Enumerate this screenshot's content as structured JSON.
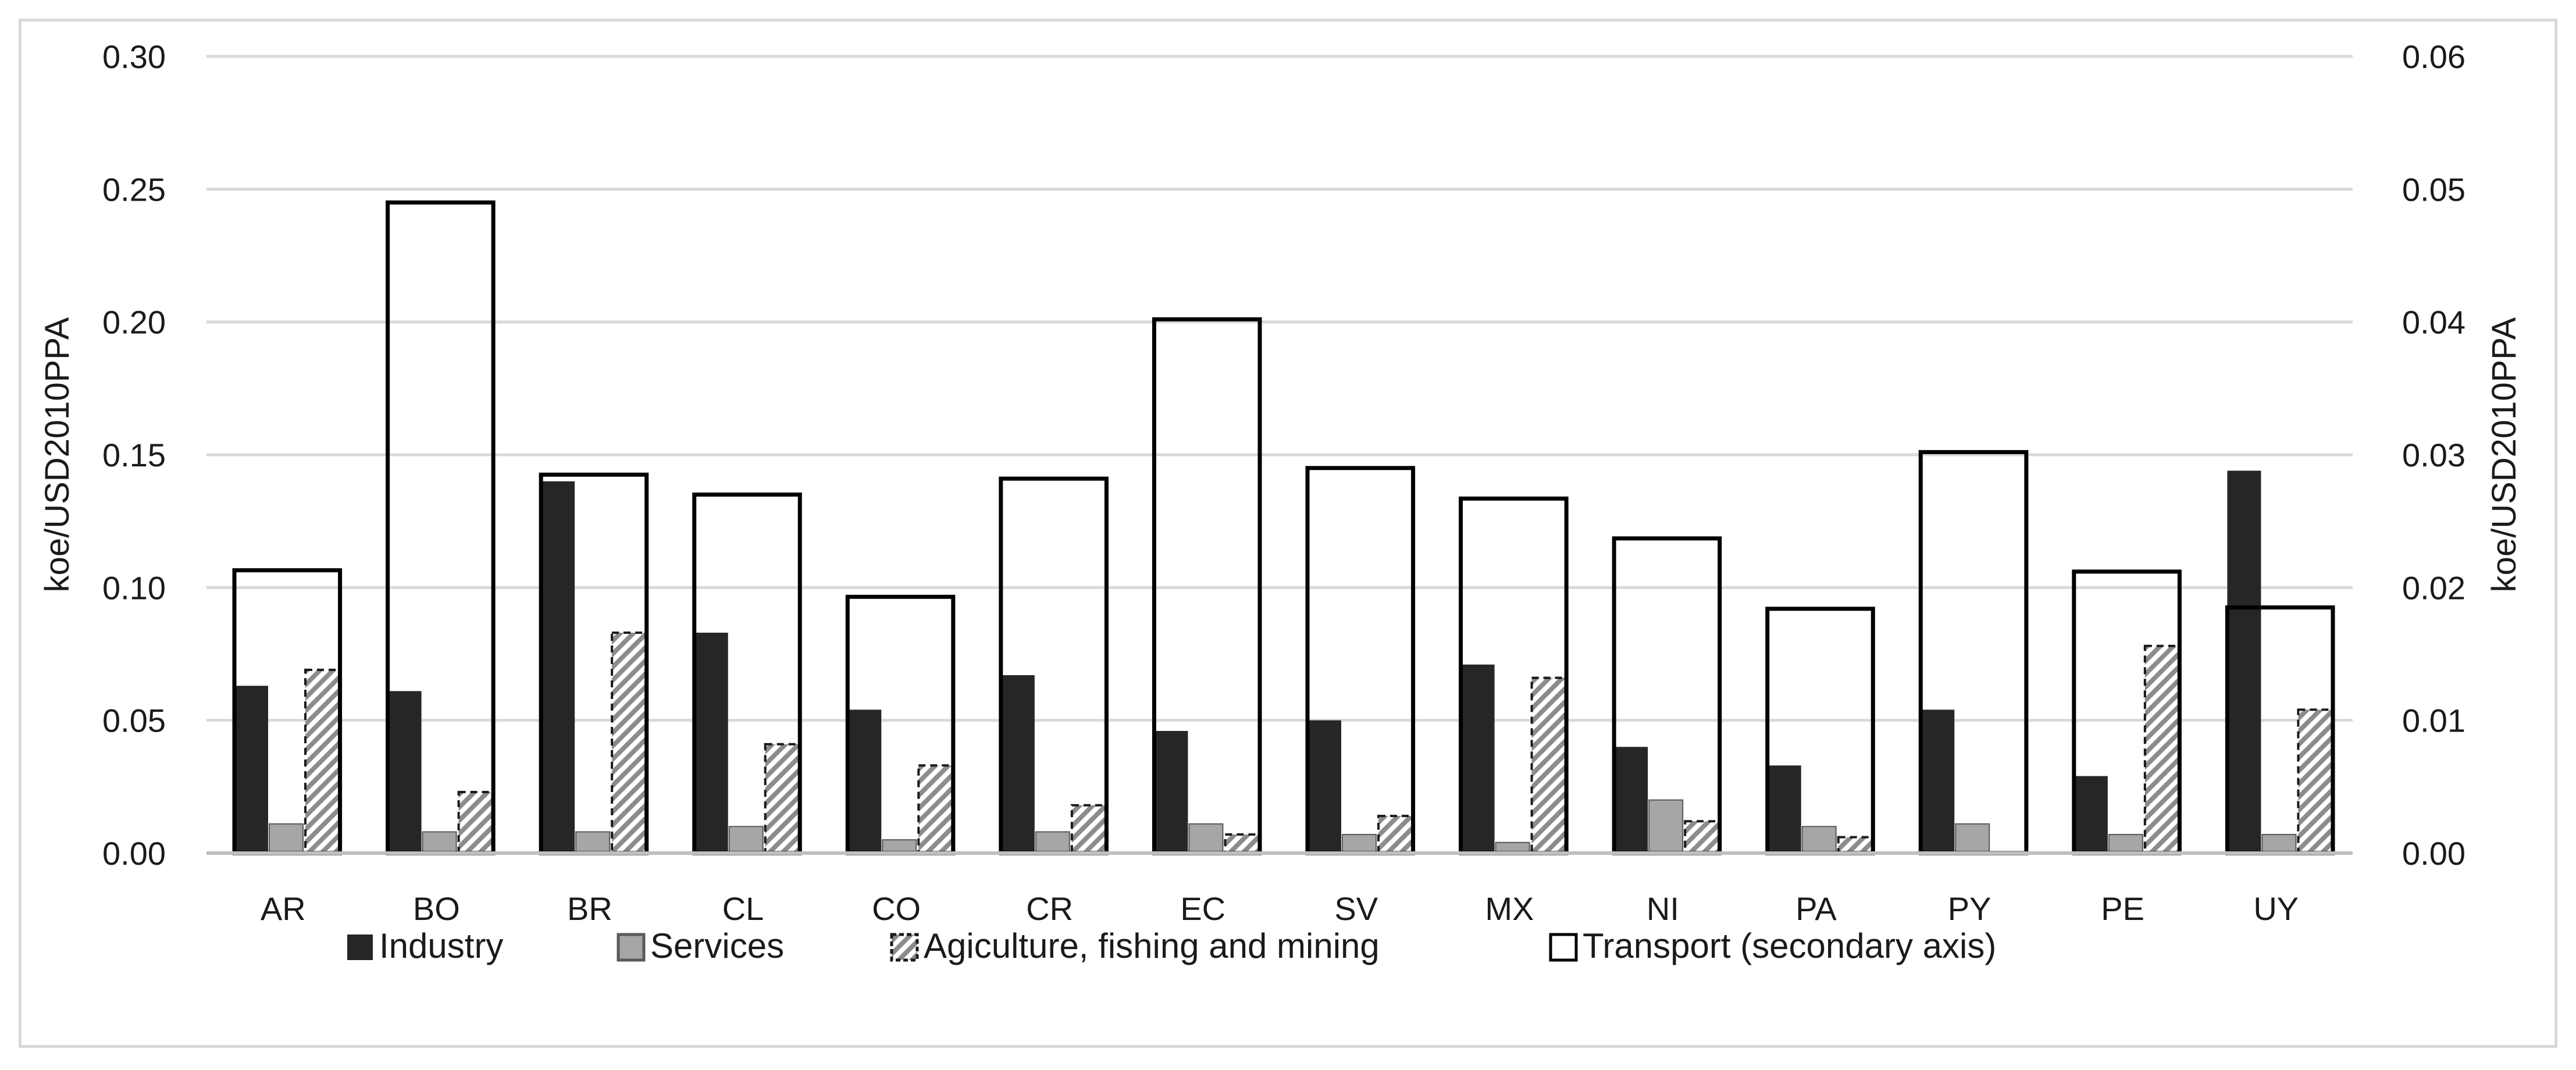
{
  "chart_data": {
    "type": "bar",
    "title": "",
    "categories": [
      "AR",
      "BO",
      "BR",
      "CL",
      "CO",
      "CR",
      "EC",
      "SV",
      "MX",
      "NI",
      "PA",
      "PY",
      "PE",
      "UY"
    ],
    "series": [
      {
        "name": "Industry",
        "axis": "primary",
        "color": "#262626",
        "values": [
          0.063,
          0.061,
          0.14,
          0.083,
          0.054,
          0.067,
          0.046,
          0.05,
          0.071,
          0.04,
          0.033,
          0.054,
          0.029,
          0.144
        ]
      },
      {
        "name": "Services",
        "axis": "primary",
        "color": "#a6a6a6",
        "values": [
          0.011,
          0.008,
          0.008,
          0.01,
          0.005,
          0.008,
          0.011,
          0.007,
          0.004,
          0.02,
          0.01,
          0.011,
          0.007,
          0.007
        ]
      },
      {
        "name": "Agiculture, fishing and mining",
        "axis": "primary",
        "color": "#808080",
        "values": [
          0.069,
          0.023,
          0.083,
          0.041,
          0.033,
          0.018,
          0.007,
          0.014,
          0.066,
          0.012,
          0.006,
          0.0,
          0.078,
          0.054
        ]
      },
      {
        "name": "Transport (secondary axis)",
        "axis": "secondary",
        "color": "#000000",
        "values": [
          0.0213,
          0.049,
          0.0285,
          0.027,
          0.0193,
          0.0282,
          0.0402,
          0.029,
          0.0267,
          0.0237,
          0.0184,
          0.0302,
          0.0212,
          0.0185
        ]
      }
    ],
    "ylabel": "koe/USD2010PPA",
    "ylabel2": "koe/USD2010PPA",
    "ylim": [
      0,
      0.3
    ],
    "ylim2": [
      0,
      0.06
    ],
    "yticks": [
      "0.00",
      "0.05",
      "0.10",
      "0.15",
      "0.20",
      "0.25",
      "0.30"
    ],
    "yticks2": [
      "0.00",
      "0.01",
      "0.02",
      "0.03",
      "0.04",
      "0.05",
      "0.06"
    ],
    "grid": true,
    "legend": "bottom"
  }
}
